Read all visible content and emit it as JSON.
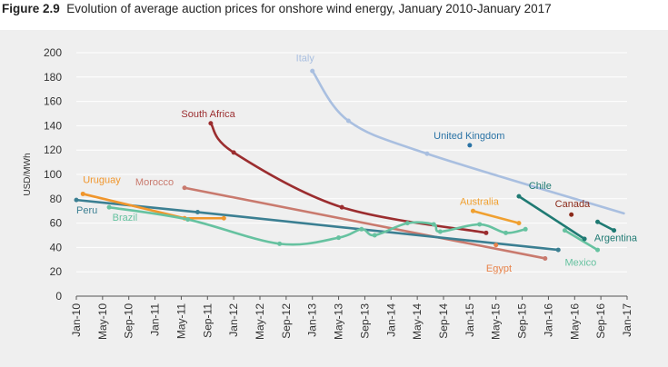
{
  "figure": {
    "number": "Figure 2.9",
    "caption": "Evolution of average auction prices for onshore wind energy, January 2010-January 2017"
  },
  "chart_data": {
    "type": "line",
    "title": "Evolution of average auction prices for onshore wind energy, January 2010-January 2017",
    "xlabel": "",
    "ylabel": "USD/MWh",
    "ylim": [
      0,
      200
    ],
    "yticks": [
      0,
      20,
      40,
      60,
      80,
      100,
      120,
      140,
      160,
      180,
      200
    ],
    "xlim": [
      0,
      84
    ],
    "xticks": [
      {
        "m": 0,
        "label": "Jan-10"
      },
      {
        "m": 4,
        "label": "May-10"
      },
      {
        "m": 8,
        "label": "Sep-10"
      },
      {
        "m": 12,
        "label": "Jan-11"
      },
      {
        "m": 16,
        "label": "May-11"
      },
      {
        "m": 20,
        "label": "Sep-11"
      },
      {
        "m": 24,
        "label": "Jan-12"
      },
      {
        "m": 28,
        "label": "May-12"
      },
      {
        "m": 32,
        "label": "Sep-12"
      },
      {
        "m": 36,
        "label": "Jan-13"
      },
      {
        "m": 40,
        "label": "May-13"
      },
      {
        "m": 44,
        "label": "Sep-13"
      },
      {
        "m": 48,
        "label": "Jan-14"
      },
      {
        "m": 52,
        "label": "May-14"
      },
      {
        "m": 56,
        "label": "Sep-14"
      },
      {
        "m": 60,
        "label": "Jan-15"
      },
      {
        "m": 64,
        "label": "May-15"
      },
      {
        "m": 68,
        "label": "Sep-15"
      },
      {
        "m": 72,
        "label": "Jan-16"
      },
      {
        "m": 76,
        "label": "May-16"
      },
      {
        "m": 80,
        "label": "Sep-16"
      },
      {
        "m": 84,
        "label": "Jan-17"
      }
    ],
    "x_units": "months since Jan-10",
    "series": [
      {
        "name": "Italy",
        "color": "#a9bfe0",
        "smooth": true,
        "points": [
          [
            36.0,
            185
          ],
          [
            41.5,
            144
          ],
          [
            53.5,
            117
          ],
          [
            83.5,
            68
          ]
        ],
        "markers": [
          0,
          1,
          2
        ]
      },
      {
        "name": "South Africa",
        "color": "#9b2d2f",
        "smooth": true,
        "points": [
          [
            20.5,
            142
          ],
          [
            24.0,
            118
          ],
          [
            40.5,
            73
          ],
          [
            62.5,
            52
          ]
        ],
        "markers": [
          0,
          1,
          2,
          3
        ]
      },
      {
        "name": "Morocco",
        "color": "#c97a6e",
        "smooth": false,
        "points": [
          [
            16.5,
            89
          ],
          [
            71.5,
            31
          ]
        ],
        "markers": [
          0,
          1
        ]
      },
      {
        "name": "Peru",
        "color": "#3b7f92",
        "smooth": false,
        "points": [
          [
            0.0,
            79
          ],
          [
            18.5,
            69
          ],
          [
            73.5,
            38
          ]
        ],
        "markers": [
          0,
          1,
          2
        ]
      },
      {
        "name": "Uruguay",
        "color": "#f0962c",
        "smooth": false,
        "points": [
          [
            1.0,
            84
          ],
          [
            16.5,
            64
          ],
          [
            22.5,
            64
          ]
        ],
        "markers": [
          0,
          1,
          2
        ]
      },
      {
        "name": "Brazil",
        "color": "#66c2a0",
        "smooth": true,
        "points": [
          [
            5.0,
            73
          ],
          [
            17.0,
            63
          ],
          [
            31.0,
            43
          ],
          [
            40.0,
            48
          ],
          [
            43.5,
            55
          ],
          [
            45.5,
            50
          ],
          [
            50.5,
            60
          ],
          [
            54.5,
            59
          ],
          [
            55.5,
            53
          ],
          [
            61.5,
            59
          ],
          [
            65.5,
            52
          ],
          [
            68.5,
            55
          ]
        ],
        "markers": [
          0,
          1,
          2,
          3,
          4,
          5,
          6,
          7,
          8,
          9,
          10,
          11
        ]
      },
      {
        "name": "Mexico",
        "color": "#66c2a0",
        "smooth": false,
        "points": [
          [
            74.5,
            54
          ],
          [
            79.5,
            38
          ]
        ],
        "markers": [
          0,
          1
        ]
      },
      {
        "name": "Chile",
        "color": "#1f7a73",
        "smooth": false,
        "points": [
          [
            67.5,
            82
          ],
          [
            77.5,
            47
          ]
        ],
        "markers": [
          0,
          1
        ]
      },
      {
        "name": "Australia",
        "color": "#f0a030",
        "smooth": false,
        "points": [
          [
            60.5,
            70
          ],
          [
            67.5,
            60
          ]
        ],
        "markers": [
          0,
          1
        ]
      },
      {
        "name": "Argentina",
        "color": "#1f7a73",
        "smooth": false,
        "points": [
          [
            79.5,
            61
          ],
          [
            82.0,
            54
          ]
        ],
        "markers": [
          0,
          1
        ]
      },
      {
        "name": "United Kingdom",
        "color": "#2a73a5",
        "smooth": false,
        "points": [
          [
            60.0,
            124
          ]
        ],
        "markers": [
          0
        ]
      },
      {
        "name": "Canada",
        "color": "#8b2a1a",
        "smooth": false,
        "points": [
          [
            75.5,
            67
          ]
        ],
        "markers": [
          0
        ]
      },
      {
        "name": "Egypt",
        "color": "#e8834a",
        "smooth": false,
        "points": [
          [
            64.0,
            42
          ]
        ],
        "markers": [
          0
        ]
      }
    ],
    "series_labels": [
      {
        "name": "Italy",
        "color": "#a9bfe0",
        "at": [
          33.5,
          193
        ]
      },
      {
        "name": "South Africa",
        "color": "#9b2d2f",
        "at": [
          16.0,
          147
        ]
      },
      {
        "name": "United Kingdom",
        "color": "#2a73a5",
        "at": [
          54.5,
          129
        ]
      },
      {
        "name": "Morocco",
        "color": "#c97a6e",
        "at": [
          9.0,
          91
        ]
      },
      {
        "name": "Uruguay",
        "color": "#f0962c",
        "at": [
          1.0,
          93
        ]
      },
      {
        "name": "Peru",
        "color": "#3b7f92",
        "at": [
          0.0,
          68
        ]
      },
      {
        "name": "Brazil",
        "color": "#66c2a0",
        "at": [
          5.5,
          62
        ]
      },
      {
        "name": "Australia",
        "color": "#f0a030",
        "at": [
          58.5,
          75
        ]
      },
      {
        "name": "Chile",
        "color": "#1f7a73",
        "at": [
          69.0,
          88
        ]
      },
      {
        "name": "Canada",
        "color": "#8b2a1a",
        "at": [
          73.0,
          73
        ]
      },
      {
        "name": "Argentina",
        "color": "#1f7a73",
        "at": [
          79.0,
          45
        ]
      },
      {
        "name": "Mexico",
        "color": "#66c2a0",
        "at": [
          74.5,
          25
        ]
      },
      {
        "name": "Egypt",
        "color": "#e8834a",
        "at": [
          62.5,
          20
        ]
      }
    ]
  }
}
